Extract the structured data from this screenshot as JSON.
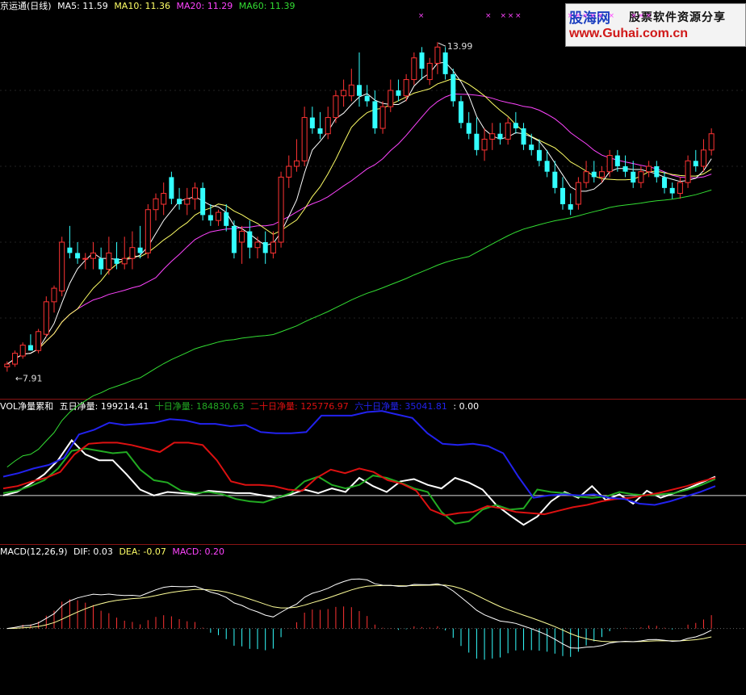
{
  "price_panel": {
    "title": "京运通(日线)",
    "indicators": [
      {
        "label": "MA5: 11.59",
        "color": "#ffffff"
      },
      {
        "label": "MA10: 11.36",
        "color": "#ffff66"
      },
      {
        "label": "MA20: 11.29",
        "color": "#ff44ff"
      },
      {
        "label": "MA60: 11.39",
        "color": "#33dd33"
      }
    ],
    "high_label": "13.99",
    "low_label": "7.91"
  },
  "vol_panel": {
    "title": "VOL净量累和",
    "indicators": [
      {
        "label": "五日净量: 199214.41",
        "color": "#ffffff"
      },
      {
        "label": "十日净量: 184830.63",
        "color": "#22aa22"
      },
      {
        "label": "二十日净量: 125776.97",
        "color": "#dd1111"
      },
      {
        "label": "六十日净量: 35041.81",
        "color": "#2222ee"
      },
      {
        "label": ": 0.00",
        "color": "#ffffff"
      }
    ]
  },
  "macd_panel": {
    "title": "MACD(12,26,9)",
    "indicators": [
      {
        "label": "DIF: 0.03",
        "color": "#ffffff"
      },
      {
        "label": "DEA: -0.07",
        "color": "#ffff66"
      },
      {
        "label": "MACD: 0.20",
        "color": "#ff44ff"
      }
    ]
  },
  "logo": {
    "line1": "股海网",
    "line1b": "股票软件资源分享",
    "line2": "www.Guhai.com.cn"
  },
  "colors": {
    "up": "#ff3333",
    "down": "#33ffff",
    "ma5": "#ffffff",
    "ma10": "#ffff66",
    "ma20": "#ff44ff",
    "ma60": "#33dd33",
    "separator": "#8a1414"
  },
  "chart_data": [
    {
      "type": "candlestick",
      "title": "京运通(日线)",
      "ylim": [
        7.5,
        14.5
      ],
      "candles": [
        {
          "o": 8.0,
          "h": 8.1,
          "l": 7.91,
          "c": 8.05
        },
        {
          "o": 8.05,
          "h": 8.3,
          "l": 8.0,
          "c": 8.25
        },
        {
          "o": 8.2,
          "h": 8.45,
          "l": 8.15,
          "c": 8.4
        },
        {
          "o": 8.4,
          "h": 8.6,
          "l": 8.3,
          "c": 8.3
        },
        {
          "o": 8.3,
          "h": 8.7,
          "l": 8.25,
          "c": 8.65
        },
        {
          "o": 8.6,
          "h": 9.3,
          "l": 8.55,
          "c": 9.2
        },
        {
          "o": 9.2,
          "h": 9.5,
          "l": 9.0,
          "c": 9.45
        },
        {
          "o": 9.4,
          "h": 10.4,
          "l": 9.3,
          "c": 10.3
        },
        {
          "o": 10.2,
          "h": 10.6,
          "l": 10.0,
          "c": 10.1
        },
        {
          "o": 10.1,
          "h": 10.3,
          "l": 9.9,
          "c": 10.0
        },
        {
          "o": 10.0,
          "h": 10.1,
          "l": 9.8,
          "c": 10.0
        },
        {
          "o": 10.0,
          "h": 10.3,
          "l": 9.8,
          "c": 10.1
        },
        {
          "o": 10.0,
          "h": 10.2,
          "l": 9.7,
          "c": 9.8
        },
        {
          "o": 9.8,
          "h": 10.4,
          "l": 9.7,
          "c": 10.1
        },
        {
          "o": 10.0,
          "h": 10.3,
          "l": 9.8,
          "c": 9.9
        },
        {
          "o": 9.9,
          "h": 10.4,
          "l": 9.8,
          "c": 10.0
        },
        {
          "o": 10.0,
          "h": 10.5,
          "l": 9.8,
          "c": 10.2
        },
        {
          "o": 10.2,
          "h": 10.6,
          "l": 10.0,
          "c": 10.1
        },
        {
          "o": 10.1,
          "h": 11.0,
          "l": 10.0,
          "c": 10.9
        },
        {
          "o": 10.9,
          "h": 11.2,
          "l": 10.7,
          "c": 11.1
        },
        {
          "o": 11.0,
          "h": 11.4,
          "l": 10.8,
          "c": 11.2
        },
        {
          "o": 11.5,
          "h": 11.6,
          "l": 11.0,
          "c": 11.1
        },
        {
          "o": 11.1,
          "h": 11.3,
          "l": 10.9,
          "c": 11.0
        },
        {
          "o": 11.0,
          "h": 11.3,
          "l": 10.8,
          "c": 11.1
        },
        {
          "o": 11.1,
          "h": 11.4,
          "l": 10.9,
          "c": 11.3
        },
        {
          "o": 11.3,
          "h": 11.4,
          "l": 10.7,
          "c": 10.8
        },
        {
          "o": 10.8,
          "h": 11.0,
          "l": 10.6,
          "c": 10.7
        },
        {
          "o": 10.7,
          "h": 10.9,
          "l": 10.6,
          "c": 10.85
        },
        {
          "o": 10.85,
          "h": 11.0,
          "l": 10.5,
          "c": 10.6
        },
        {
          "o": 10.6,
          "h": 10.7,
          "l": 10.0,
          "c": 10.1
        },
        {
          "o": 10.3,
          "h": 10.6,
          "l": 9.9,
          "c": 10.5
        },
        {
          "o": 10.5,
          "h": 10.7,
          "l": 10.0,
          "c": 10.2
        },
        {
          "o": 10.2,
          "h": 10.4,
          "l": 10.0,
          "c": 10.3
        },
        {
          "o": 10.3,
          "h": 10.5,
          "l": 9.9,
          "c": 10.1
        },
        {
          "o": 10.1,
          "h": 10.5,
          "l": 10.0,
          "c": 10.3
        },
        {
          "o": 10.3,
          "h": 11.6,
          "l": 10.2,
          "c": 11.5
        },
        {
          "o": 11.5,
          "h": 11.9,
          "l": 11.3,
          "c": 11.7
        },
        {
          "o": 11.7,
          "h": 12.2,
          "l": 11.6,
          "c": 11.8
        },
        {
          "o": 11.8,
          "h": 12.8,
          "l": 11.7,
          "c": 12.6
        },
        {
          "o": 12.6,
          "h": 12.8,
          "l": 12.3,
          "c": 12.4
        },
        {
          "o": 12.4,
          "h": 12.7,
          "l": 12.2,
          "c": 12.3
        },
        {
          "o": 12.3,
          "h": 12.8,
          "l": 12.2,
          "c": 12.6
        },
        {
          "o": 12.6,
          "h": 13.1,
          "l": 12.5,
          "c": 13.0
        },
        {
          "o": 13.0,
          "h": 13.3,
          "l": 12.8,
          "c": 13.1
        },
        {
          "o": 13.0,
          "h": 13.5,
          "l": 12.9,
          "c": 13.2
        },
        {
          "o": 13.2,
          "h": 13.8,
          "l": 12.8,
          "c": 13.0
        },
        {
          "o": 13.0,
          "h": 13.2,
          "l": 12.8,
          "c": 12.9
        },
        {
          "o": 12.9,
          "h": 13.1,
          "l": 12.3,
          "c": 12.4
        },
        {
          "o": 12.4,
          "h": 12.9,
          "l": 12.3,
          "c": 12.8
        },
        {
          "o": 12.8,
          "h": 13.3,
          "l": 12.7,
          "c": 13.1
        },
        {
          "o": 13.1,
          "h": 13.3,
          "l": 12.9,
          "c": 13.0
        },
        {
          "o": 13.0,
          "h": 13.4,
          "l": 12.9,
          "c": 13.3
        },
        {
          "o": 13.3,
          "h": 13.8,
          "l": 13.2,
          "c": 13.7
        },
        {
          "o": 13.8,
          "h": 13.9,
          "l": 13.3,
          "c": 13.5
        },
        {
          "o": 13.3,
          "h": 13.7,
          "l": 13.2,
          "c": 13.6
        },
        {
          "o": 13.6,
          "h": 13.99,
          "l": 13.4,
          "c": 13.9
        },
        {
          "o": 13.8,
          "h": 13.9,
          "l": 13.3,
          "c": 13.4
        },
        {
          "o": 13.4,
          "h": 13.5,
          "l": 12.8,
          "c": 12.9
        },
        {
          "o": 12.9,
          "h": 13.0,
          "l": 12.4,
          "c": 12.5
        },
        {
          "o": 12.5,
          "h": 12.7,
          "l": 12.2,
          "c": 12.3
        },
        {
          "o": 12.3,
          "h": 12.6,
          "l": 11.9,
          "c": 12.0
        },
        {
          "o": 12.0,
          "h": 12.4,
          "l": 11.8,
          "c": 12.2
        },
        {
          "o": 12.2,
          "h": 12.5,
          "l": 12.0,
          "c": 12.3
        },
        {
          "o": 12.3,
          "h": 12.5,
          "l": 12.1,
          "c": 12.2
        },
        {
          "o": 12.2,
          "h": 12.6,
          "l": 12.1,
          "c": 12.5
        },
        {
          "o": 12.5,
          "h": 12.7,
          "l": 12.3,
          "c": 12.4
        },
        {
          "o": 12.4,
          "h": 12.5,
          "l": 12.0,
          "c": 12.1
        },
        {
          "o": 12.1,
          "h": 12.3,
          "l": 11.9,
          "c": 12.0
        },
        {
          "o": 12.0,
          "h": 12.2,
          "l": 11.7,
          "c": 11.8
        },
        {
          "o": 11.8,
          "h": 12.0,
          "l": 11.5,
          "c": 11.6
        },
        {
          "o": 11.6,
          "h": 11.8,
          "l": 11.2,
          "c": 11.3
        },
        {
          "o": 11.3,
          "h": 11.5,
          "l": 10.9,
          "c": 11.0
        },
        {
          "o": 11.0,
          "h": 11.2,
          "l": 10.8,
          "c": 10.9
        },
        {
          "o": 11.0,
          "h": 11.5,
          "l": 10.9,
          "c": 11.4
        },
        {
          "o": 11.4,
          "h": 11.8,
          "l": 11.3,
          "c": 11.6
        },
        {
          "o": 11.6,
          "h": 11.8,
          "l": 11.4,
          "c": 11.5
        },
        {
          "o": 11.5,
          "h": 11.7,
          "l": 11.4,
          "c": 11.6
        },
        {
          "o": 11.6,
          "h": 12.0,
          "l": 11.5,
          "c": 11.9
        },
        {
          "o": 11.9,
          "h": 12.0,
          "l": 11.6,
          "c": 11.7
        },
        {
          "o": 11.7,
          "h": 11.9,
          "l": 11.5,
          "c": 11.6
        },
        {
          "o": 11.6,
          "h": 11.8,
          "l": 11.3,
          "c": 11.4
        },
        {
          "o": 11.4,
          "h": 11.7,
          "l": 11.3,
          "c": 11.6
        },
        {
          "o": 11.6,
          "h": 11.8,
          "l": 11.5,
          "c": 11.7
        },
        {
          "o": 11.7,
          "h": 11.8,
          "l": 11.4,
          "c": 11.5
        },
        {
          "o": 11.5,
          "h": 11.6,
          "l": 11.2,
          "c": 11.3
        },
        {
          "o": 11.3,
          "h": 11.4,
          "l": 11.1,
          "c": 11.2
        },
        {
          "o": 11.2,
          "h": 11.5,
          "l": 11.1,
          "c": 11.4
        },
        {
          "o": 11.4,
          "h": 11.9,
          "l": 11.3,
          "c": 11.8
        },
        {
          "o": 11.8,
          "h": 12.0,
          "l": 11.6,
          "c": 11.7
        },
        {
          "o": 11.7,
          "h": 12.2,
          "l": 11.6,
          "c": 12.0
        },
        {
          "o": 12.0,
          "h": 12.4,
          "l": 11.9,
          "c": 12.3
        }
      ],
      "markers": [
        32,
        50,
        54,
        56,
        58,
        72,
        74,
        76,
        78,
        80,
        83,
        89,
        91,
        93,
        121,
        131,
        138,
        144,
        156,
        173,
        181
      ]
    },
    {
      "type": "line",
      "title": "VOL净量累和",
      "ylim": [
        -4,
        7
      ],
      "series": [
        {
          "name": "五日净量",
          "color": "#ffffff",
          "values": [
            0,
            0.3,
            1,
            1.8,
            3,
            4.7,
            3.5,
            3,
            3,
            1.8,
            0.5,
            0,
            0.3,
            0.2,
            0.1,
            0.4,
            0.3,
            0.2,
            0.2,
            0,
            -0.2,
            0.1,
            0.5,
            0.2,
            0.6,
            0.3,
            1.5,
            0.8,
            0.3,
            1.2,
            1.4,
            0.9,
            0.6,
            1.5,
            1.1,
            0.5,
            -0.8,
            -1.7,
            -2.5,
            -1.8,
            -0.5,
            0.3,
            -0.2,
            0.8,
            -0.4,
            0.1,
            -0.7,
            0.4,
            -0.2,
            0.2,
            0.6,
            1.1,
            1.6
          ]
        },
        {
          "name": "十日净量",
          "color": "#22aa22",
          "values": [
            0.2,
            0.4,
            0.8,
            1.3,
            2.3,
            3.8,
            4,
            3.8,
            3.6,
            3.7,
            2.2,
            1.3,
            1.1,
            0.4,
            0.2,
            0.3,
            0.1,
            -0.3,
            -0.5,
            -0.6,
            -0.2,
            0.2,
            1.2,
            1.6,
            0.9,
            0.6,
            0.9,
            1.7,
            1.5,
            1.1,
            0.6,
            0.3,
            -1.4,
            -2.4,
            -2.2,
            -1.2,
            -0.8,
            -1.2,
            -1.1,
            0.5,
            0.3,
            0.2,
            -0.1,
            -0.2,
            -0.1,
            0.3,
            0.1,
            0,
            0.1,
            0.2,
            0.5,
            0.9,
            1.4
          ]
        },
        {
          "name": "二十日净量",
          "color": "#dd1111",
          "values": [
            0.6,
            0.8,
            1.2,
            1.5,
            2,
            3.5,
            4.4,
            4.5,
            4.5,
            4.3,
            4,
            3.7,
            4.5,
            4.5,
            4.3,
            3,
            1.2,
            0.9,
            0.9,
            0.8,
            0.5,
            0.4,
            1.5,
            2.2,
            1.9,
            2.3,
            2.0,
            1.3,
            1.0,
            0.4,
            -1.2,
            -1.7,
            -1.5,
            -1.4,
            -0.9,
            -1.1,
            -1.4,
            -1.5,
            -1.6,
            -1.3,
            -1.0,
            -0.8,
            -0.5,
            -0.3,
            -0.2,
            0,
            0.2,
            0.5,
            0.8,
            1.2,
            1.5
          ]
        },
        {
          "name": "六十日净量",
          "color": "#2222ee",
          "values": [
            1.6,
            1.9,
            2.3,
            2.6,
            3.2,
            5.2,
            5.6,
            6.2,
            6.0,
            6.1,
            6.2,
            6.5,
            6.4,
            6.1,
            6.1,
            5.9,
            6.0,
            5.4,
            5.3,
            5.3,
            5.4,
            6.8,
            6.8,
            6.8,
            7.1,
            7.2,
            6.9,
            6.6,
            5.3,
            4.4,
            4.3,
            4.4,
            4.2,
            3.6,
            1.6,
            -0.2,
            0,
            0.1,
            0,
            0.1,
            -0.2,
            -0.3,
            -0.7,
            -0.8,
            -0.5,
            -0.1,
            0.3,
            0.8
          ]
        }
      ]
    },
    {
      "type": "bar",
      "title": "MACD(12,26,9)",
      "ylim": [
        -0.55,
        0.6
      ],
      "series": [
        {
          "name": "DIF",
          "color": "#ffffff"
        },
        {
          "name": "DEA",
          "color": "#ffff66"
        },
        {
          "name": "MACD",
          "color": "#ff44ff"
        }
      ]
    }
  ]
}
